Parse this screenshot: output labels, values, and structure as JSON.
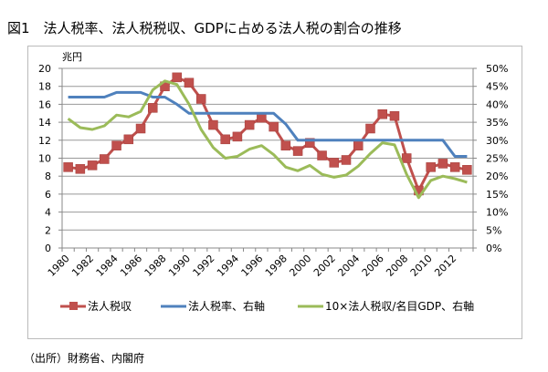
{
  "chart_data": {
    "type": "line",
    "title": "図1　法人税率、法人税税収、GDPに占める法人税の割合の推移",
    "ylabel_left": "兆円",
    "ylim_left": [
      0,
      20
    ],
    "yticks_left": [
      "0",
      "2",
      "4",
      "6",
      "8",
      "10",
      "12",
      "14",
      "16",
      "18",
      "20"
    ],
    "ylim_right": [
      0,
      50
    ],
    "yticks_right": [
      "0%",
      "5%",
      "10%",
      "15%",
      "20%",
      "25%",
      "30%",
      "35%",
      "40%",
      "45%",
      "50%"
    ],
    "x": [
      1980,
      1981,
      1982,
      1983,
      1984,
      1985,
      1986,
      1987,
      1988,
      1989,
      1990,
      1991,
      1992,
      1993,
      1994,
      1995,
      1996,
      1997,
      1998,
      1999,
      2000,
      2001,
      2002,
      2003,
      2004,
      2005,
      2006,
      2007,
      2008,
      2009,
      2010,
      2011,
      2012,
      2013
    ],
    "xtick_labels": [
      "1980",
      "1982",
      "1984",
      "1986",
      "1988",
      "1990",
      "1992",
      "1994",
      "1996",
      "1998",
      "2000",
      "2002",
      "2004",
      "2006",
      "2008",
      "2010",
      "2012"
    ],
    "grid": true,
    "legend_position": "bottom",
    "series": [
      {
        "name": "法人税収",
        "axis": "left",
        "color": "#c0504d",
        "marker": "square",
        "values": [
          9.0,
          8.8,
          9.2,
          9.9,
          11.4,
          12.1,
          13.3,
          15.6,
          18.0,
          19.0,
          18.4,
          16.6,
          13.7,
          12.1,
          12.4,
          13.7,
          14.5,
          13.5,
          11.4,
          10.8,
          11.7,
          10.3,
          9.5,
          9.8,
          11.4,
          13.3,
          14.9,
          14.7,
          10.0,
          6.4,
          9.0,
          9.4,
          9.0,
          8.7
        ]
      },
      {
        "name": "法人税率、右軸",
        "axis": "right",
        "color": "#4f81bd",
        "marker": "none",
        "values": [
          42,
          42,
          42,
          42,
          43.3,
          43.3,
          43.3,
          42,
          42,
          40,
          37.5,
          37.5,
          37.5,
          37.5,
          37.5,
          37.5,
          37.5,
          37.5,
          34.5,
          30,
          30,
          30,
          30,
          30,
          30,
          30,
          30,
          30,
          30,
          30,
          30,
          30,
          25.5,
          25.5
        ]
      },
      {
        "name": "10×法人税収/名目GDP、右軸",
        "axis": "right",
        "color": "#9bbb59",
        "marker": "none",
        "values": [
          36,
          33.5,
          33,
          34,
          37,
          36.5,
          38,
          44,
          46.5,
          45.5,
          40,
          33,
          28,
          25,
          25.5,
          27.5,
          28.5,
          26,
          22.5,
          21.5,
          23,
          20.5,
          19.7,
          20.3,
          22.8,
          26.3,
          29.3,
          28.7,
          20.5,
          14,
          18.8,
          20,
          19.3,
          18.3
        ]
      }
    ]
  },
  "source": "（出所）財務省、内閣府"
}
